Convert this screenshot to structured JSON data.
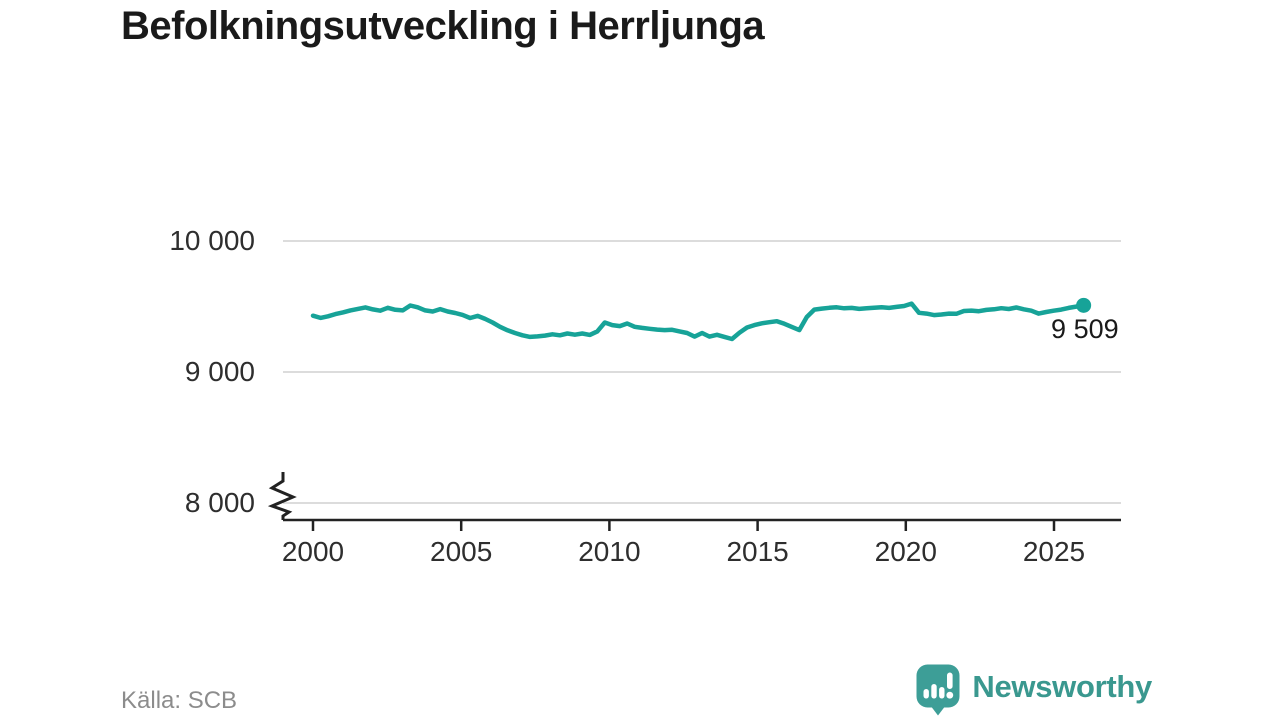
{
  "title": "Befolkningsutveckling i Herrljunga",
  "source": "Källa: SCB",
  "brand": {
    "name": "Newsworthy",
    "color": "#3a988f",
    "icon": "newsworthy-speech-bubble-bar-chart-icon",
    "icon_color": "#3d9e97"
  },
  "chart_data": {
    "type": "line",
    "title": "Befolkningsutveckling i Herrljunga",
    "xlabel": "",
    "ylabel": "",
    "grid": "horizontal-gridlines",
    "legend": "none",
    "y_axis_break": true,
    "line_color": "#17a398",
    "gridline_color": "#dcdcdc",
    "axis_color": "#222222",
    "yticks": [
      {
        "value": 10000,
        "label": "10 000"
      },
      {
        "value": 9000,
        "label": "9 000"
      },
      {
        "value": 8000,
        "label": "8 000"
      }
    ],
    "xticks": [
      {
        "value": 2000,
        "label": "2000"
      },
      {
        "value": 2005,
        "label": "2005"
      },
      {
        "value": 2010,
        "label": "2010"
      },
      {
        "value": 2015,
        "label": "2015"
      },
      {
        "value": 2020,
        "label": "2020"
      },
      {
        "value": 2025,
        "label": "2025"
      }
    ],
    "last_point": {
      "value": 9509,
      "label": "9 509"
    },
    "series": [
      {
        "name": "Befolkning i Herrljunga",
        "frequency": "quarterly",
        "x_start": 2000,
        "x_end": 2026,
        "color": "#17a398",
        "values": [
          9430,
          9413,
          9425,
          9442,
          9455,
          9470,
          9482,
          9493,
          9478,
          9468,
          9490,
          9475,
          9470,
          9508,
          9494,
          9470,
          9462,
          9480,
          9462,
          9450,
          9436,
          9412,
          9428,
          9405,
          9378,
          9345,
          9318,
          9298,
          9280,
          9268,
          9272,
          9278,
          9288,
          9280,
          9294,
          9285,
          9294,
          9283,
          9310,
          9378,
          9358,
          9350,
          9370,
          9345,
          9337,
          9330,
          9324,
          9320,
          9322,
          9310,
          9298,
          9270,
          9298,
          9270,
          9284,
          9268,
          9252,
          9300,
          9340,
          9358,
          9372,
          9380,
          9388,
          9368,
          9344,
          9320,
          9420,
          9476,
          9484,
          9490,
          9494,
          9486,
          9489,
          9482,
          9486,
          9491,
          9494,
          9489,
          9497,
          9504,
          9522,
          9452,
          9446,
          9434,
          9439,
          9446,
          9444,
          9466,
          9469,
          9464,
          9474,
          9479,
          9487,
          9481,
          9492,
          9479,
          9468,
          9446,
          9458,
          9468,
          9476,
          9489,
          9499,
          9509
        ]
      }
    ]
  }
}
